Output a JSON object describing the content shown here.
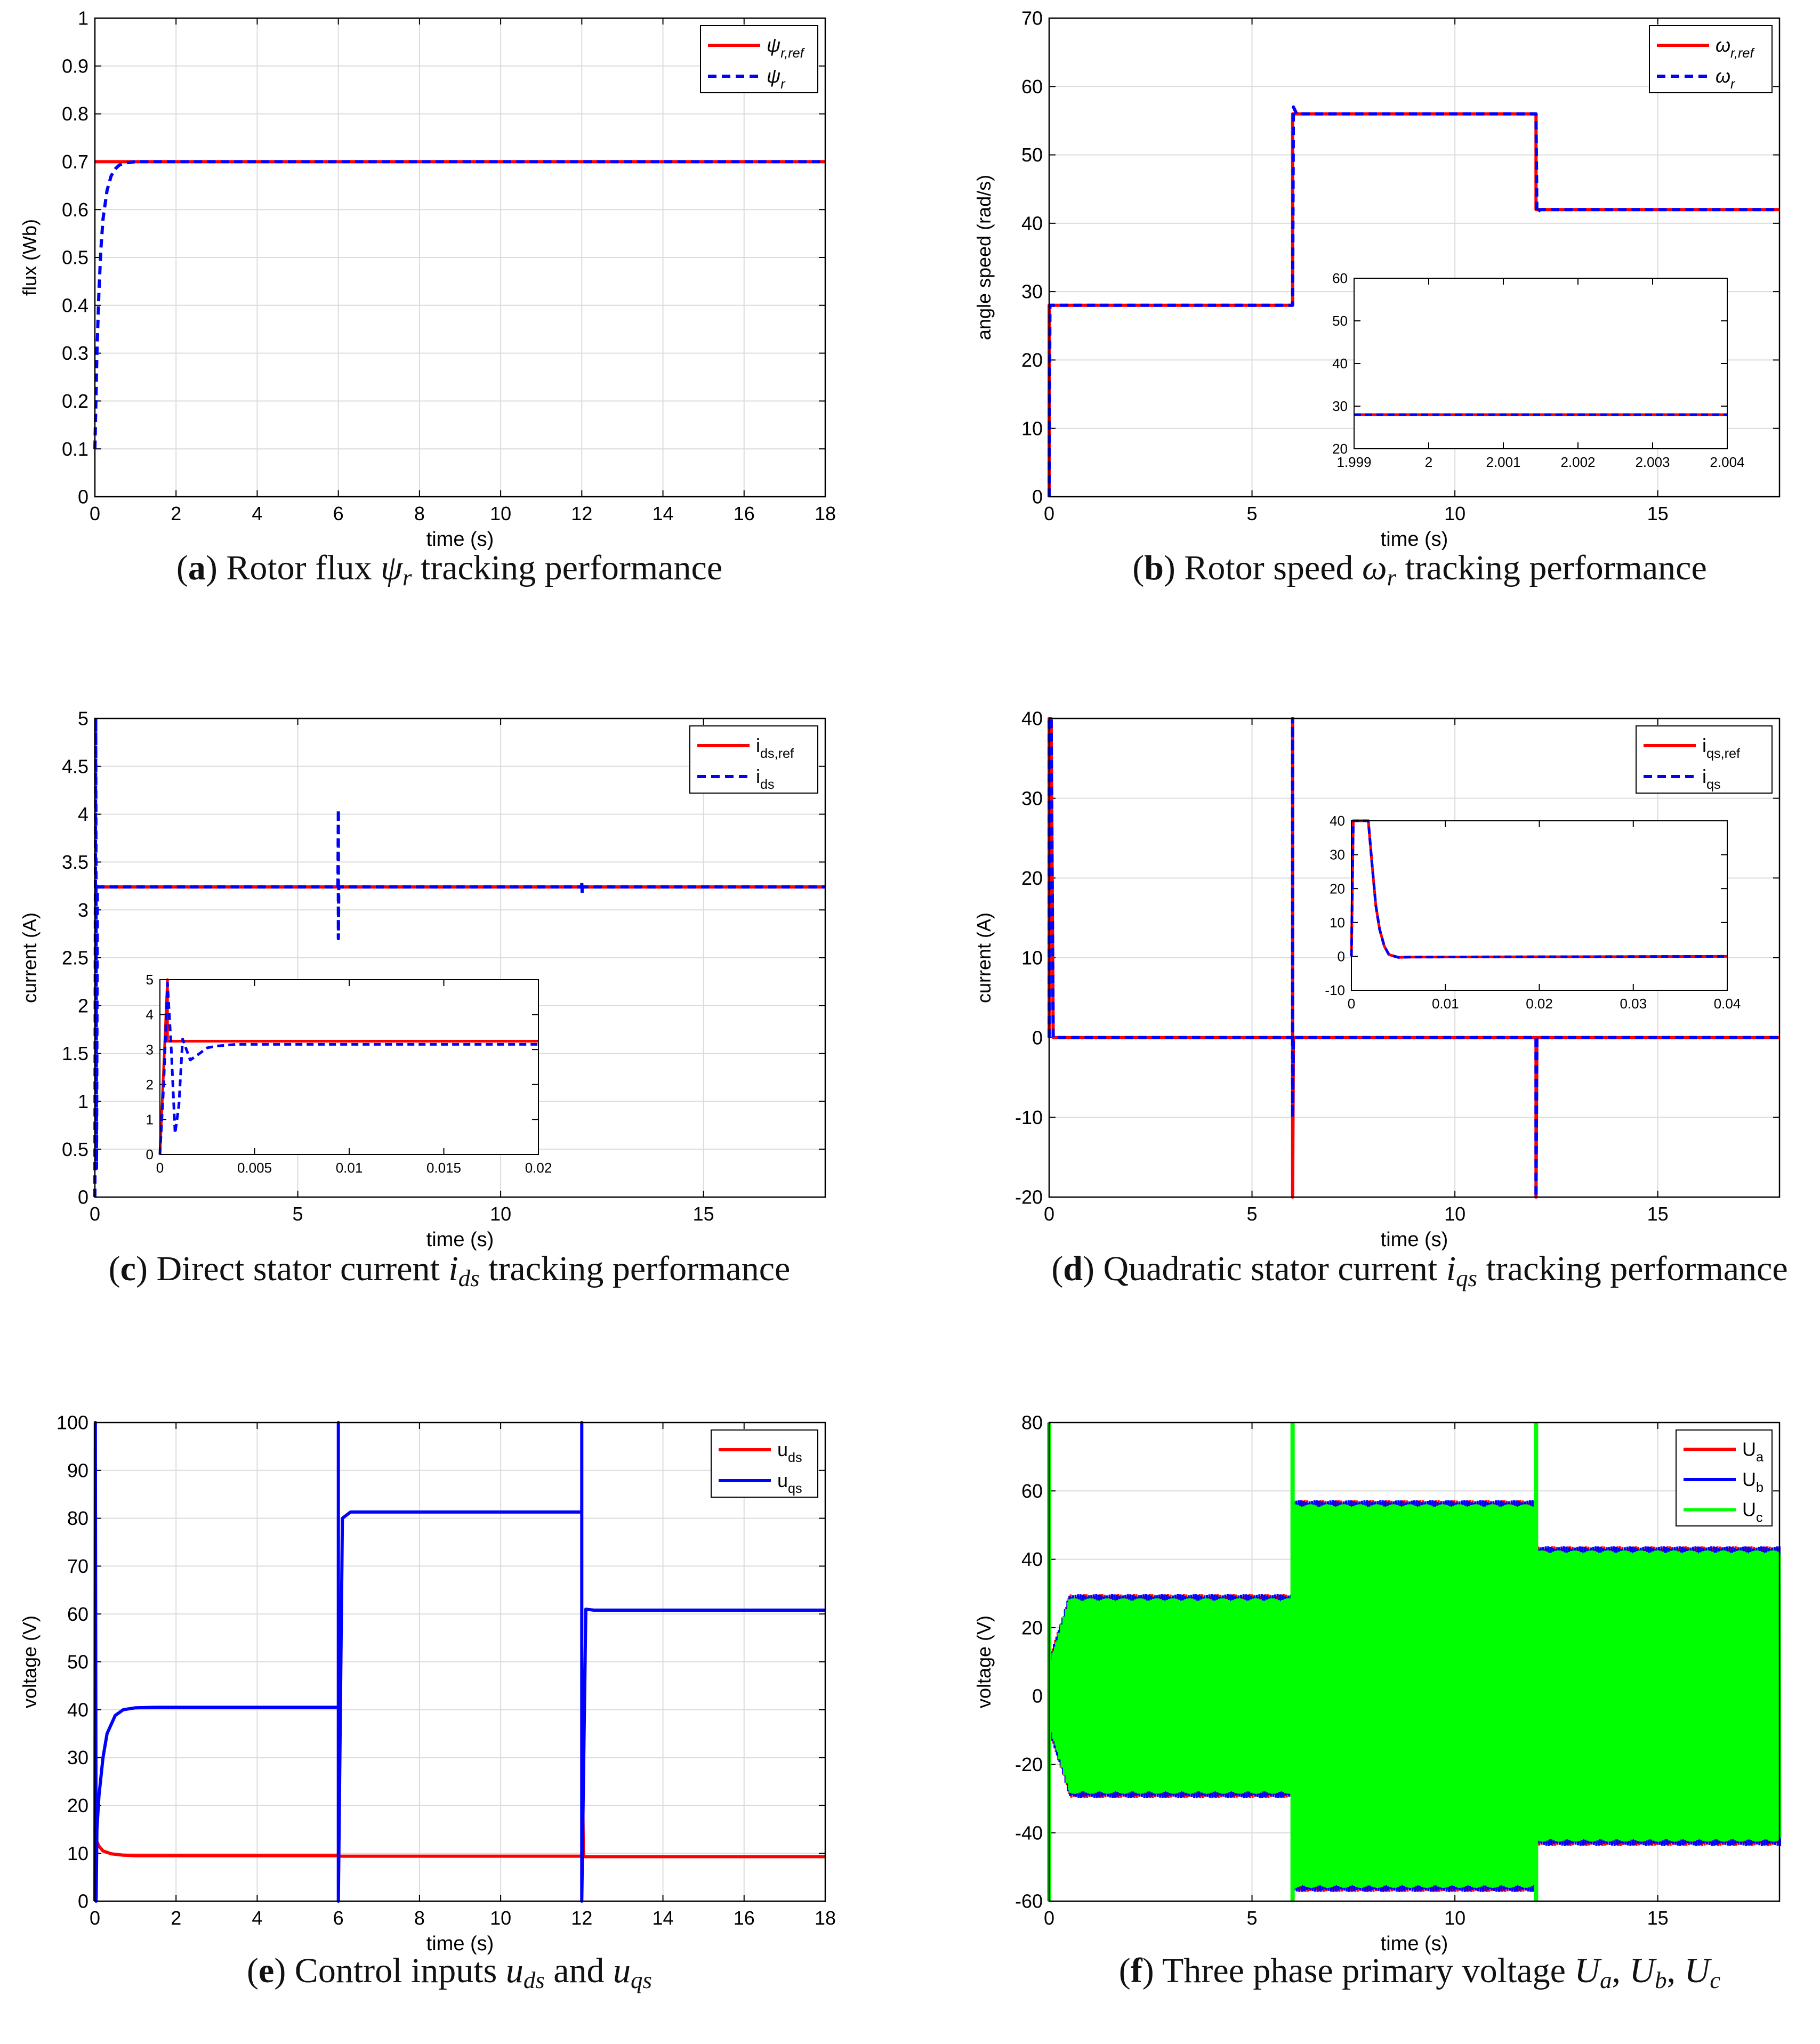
{
  "chart_data": [
    {
      "id": "a",
      "type": "line",
      "caption": {
        "tag": "a",
        "pre": " Rotor flux ",
        "sym": "ψ",
        "sub": "r",
        "post": " tracking performance"
      },
      "xlabel": "time (s)",
      "ylabel": "flux (Wb)",
      "xlim": [
        0,
        18
      ],
      "ylim": [
        0,
        1
      ],
      "xticks": [
        0,
        2,
        4,
        6,
        8,
        10,
        12,
        14,
        16,
        18
      ],
      "yticks": [
        0,
        0.1,
        0.2,
        0.3,
        0.4,
        0.5,
        0.6,
        0.7,
        0.8,
        0.9,
        1
      ],
      "grid": true,
      "legend_position": "top-right",
      "series": [
        {
          "name": "ψ_r,ref",
          "color": "#ff0000",
          "style": "solid",
          "x": [
            0,
            18
          ],
          "y": [
            0.7,
            0.7
          ]
        },
        {
          "name": "ψ_r",
          "color": "#0000ff",
          "style": "dashed",
          "x": [
            0,
            0.05,
            0.1,
            0.15,
            0.2,
            0.3,
            0.4,
            0.5,
            0.6,
            0.8,
            1.0,
            18
          ],
          "y": [
            0.1,
            0.3,
            0.43,
            0.52,
            0.58,
            0.64,
            0.67,
            0.685,
            0.693,
            0.698,
            0.7,
            0.7
          ]
        }
      ]
    },
    {
      "id": "b",
      "type": "line",
      "caption": {
        "tag": "b",
        "pre": " Rotor speed ",
        "sym": "ω",
        "sub": "r",
        "post": " tracking performance"
      },
      "xlabel": "time (s)",
      "ylabel": "angle speed (rad/s)",
      "xlim": [
        0,
        18
      ],
      "ylim": [
        0,
        70
      ],
      "xticks": [
        0,
        5,
        10,
        15
      ],
      "yticks": [
        0,
        10,
        20,
        30,
        40,
        50,
        60,
        70
      ],
      "grid": true,
      "legend_position": "top-right",
      "series": [
        {
          "name": "ω_r,ref",
          "color": "#ff0000",
          "style": "solid",
          "x": [
            0,
            0,
            6,
            6,
            12,
            12,
            18
          ],
          "y": [
            0,
            28,
            28,
            56,
            56,
            42,
            42
          ]
        },
        {
          "name": "ω_r",
          "color": "#0000ff",
          "style": "dashed",
          "x": [
            0,
            0.02,
            0.05,
            6,
            6.02,
            6.1,
            12,
            12.02,
            12.1,
            18
          ],
          "y": [
            0,
            28,
            28,
            28,
            57,
            56,
            56,
            41.5,
            42,
            42
          ]
        }
      ],
      "inset": {
        "xlim": [
          1.999,
          2.004
        ],
        "ylim": [
          20,
          60
        ],
        "xticks": [
          1.999,
          2,
          2.001,
          2.002,
          2.003,
          2.004
        ],
        "xticklabels": [
          "1.999",
          "2",
          "2.001",
          "2.002",
          "2.003",
          "2.004"
        ],
        "yticks": [
          20,
          30,
          40,
          50,
          60
        ],
        "series": [
          {
            "color": "#ff0000",
            "style": "solid",
            "x": [
              1.999,
              2.004
            ],
            "y": [
              28,
              28
            ]
          },
          {
            "color": "#0000ff",
            "style": "dashed",
            "x": [
              1.999,
              2.004
            ],
            "y": [
              28,
              28
            ]
          }
        ]
      }
    },
    {
      "id": "c",
      "type": "line",
      "caption": {
        "tag": "c",
        "pre": " Direct stator current ",
        "sym": "i",
        "sub": "ds",
        "post": " tracking performance"
      },
      "xlabel": "time (s)",
      "ylabel": "current (A)",
      "xlim": [
        0,
        18
      ],
      "ylim": [
        0,
        5
      ],
      "xticks": [
        0,
        5,
        10,
        15
      ],
      "yticks": [
        0,
        0.5,
        1,
        1.5,
        2,
        2.5,
        3,
        3.5,
        4,
        4.5,
        5
      ],
      "grid": true,
      "legend_position": "top-right",
      "series": [
        {
          "name": "i_ds,ref",
          "color": "#ff0000",
          "style": "solid",
          "x": [
            0,
            18
          ],
          "y": [
            3.24,
            3.24
          ]
        },
        {
          "name": "i_ds",
          "color": "#0000ff",
          "style": "dashed",
          "x": [
            0,
            0.02,
            0.04,
            0.06,
            0.1,
            5.99,
            6.0,
            6.0,
            6.01,
            6.02,
            12.0,
            12.0,
            12.01,
            12.02,
            18
          ],
          "y": [
            0,
            5,
            0.3,
            3.24,
            3.24,
            3.24,
            4.05,
            2.7,
            3.24,
            3.24,
            3.24,
            3.3,
            3.17,
            3.24,
            3.24
          ]
        }
      ],
      "inset": {
        "xlim": [
          0,
          0.02
        ],
        "ylim": [
          0,
          5
        ],
        "xticks": [
          0,
          0.005,
          0.01,
          0.015,
          0.02
        ],
        "xticklabels": [
          "0",
          "0.005",
          "0.01",
          "0.015",
          "0.02"
        ],
        "yticks": [
          0,
          1,
          2,
          3,
          4,
          5
        ],
        "series": [
          {
            "color": "#ff0000",
            "style": "solid",
            "x": [
              0,
              0.0004,
              0.0004,
              0.02
            ],
            "y": [
              0,
              5,
              3.24,
              3.24
            ]
          },
          {
            "color": "#0000ff",
            "style": "dashed",
            "x": [
              0,
              0.0002,
              0.0004,
              0.0006,
              0.0008,
              0.001,
              0.0012,
              0.0016,
              0.002,
              0.0025,
              0.003,
              0.004,
              0.006,
              0.02
            ],
            "y": [
              0,
              2,
              4.9,
              3,
              0.6,
              1.4,
              3.3,
              2.7,
              2.85,
              3.05,
              3.1,
              3.15,
              3.15,
              3.15
            ]
          }
        ]
      }
    },
    {
      "id": "d",
      "type": "line",
      "caption": {
        "tag": "d",
        "pre": " Quadratic stator current ",
        "sym": "i",
        "sub": "qs",
        "post": " tracking performance"
      },
      "xlabel": "time (s)",
      "ylabel": "current (A)",
      "xlim": [
        0,
        18
      ],
      "ylim": [
        -20,
        40
      ],
      "xticks": [
        0,
        5,
        10,
        15
      ],
      "yticks": [
        -20,
        -10,
        0,
        10,
        20,
        30,
        40
      ],
      "grid": true,
      "legend_position": "top-right",
      "series": [
        {
          "name": "i_qs,ref",
          "color": "#ff0000",
          "style": "solid",
          "x": [
            0,
            0,
            0.05,
            0.1,
            6.0,
            6.0,
            6.0,
            6.02,
            12.0,
            12.0,
            12.02,
            18
          ],
          "y": [
            0,
            40,
            40,
            0,
            0,
            40,
            -20,
            0,
            0,
            -20,
            0,
            0
          ]
        },
        {
          "name": "i_qs",
          "color": "#0000ff",
          "style": "dashed",
          "x": [
            0,
            0,
            0.05,
            0.1,
            6.0,
            6.0,
            6.0,
            6.02,
            12.0,
            12.0,
            12.02,
            18
          ],
          "y": [
            0,
            40,
            40,
            0,
            0,
            40,
            -10,
            0,
            0,
            -20,
            0,
            0
          ]
        }
      ],
      "inset": {
        "xlim": [
          0,
          0.04
        ],
        "ylim": [
          -10,
          40
        ],
        "xticks": [
          0,
          0.01,
          0.02,
          0.03,
          0.04
        ],
        "xticklabels": [
          "0",
          "0.01",
          "0.02",
          "0.03",
          "0.04"
        ],
        "yticks": [
          -10,
          0,
          10,
          20,
          30,
          40
        ],
        "series": [
          {
            "color": "#ff0000",
            "style": "solid",
            "x": [
              0,
              0.0002,
              0.0004,
              0.0016,
              0.0018,
              0.0022,
              0.0026,
              0.003,
              0.0035,
              0.004,
              0.005,
              0.006,
              0.04
            ],
            "y": [
              0,
              40,
              40,
              40,
              40,
              27,
              15,
              8,
              3,
              0.5,
              -0.3,
              -0.2,
              0
            ]
          },
          {
            "color": "#0000ff",
            "style": "dashed",
            "x": [
              0,
              0.0002,
              0.0004,
              0.0016,
              0.0018,
              0.0022,
              0.0026,
              0.003,
              0.0035,
              0.004,
              0.005,
              0.006,
              0.04
            ],
            "y": [
              0,
              40,
              40,
              40,
              40,
              27,
              15,
              8,
              3,
              0.5,
              -0.3,
              -0.2,
              0
            ]
          }
        ]
      }
    },
    {
      "id": "e",
      "type": "line",
      "caption": {
        "tag": "e",
        "pre": " Control inputs ",
        "sym": "u",
        "sub": "ds",
        "post": " and ",
        "sym2": "u",
        "sub2": "qs"
      },
      "xlabel": "time (s)",
      "ylabel": "voltage (V)",
      "xlim": [
        0,
        18
      ],
      "ylim": [
        0,
        100
      ],
      "xticks": [
        0,
        2,
        4,
        6,
        8,
        10,
        12,
        14,
        16,
        18
      ],
      "yticks": [
        0,
        10,
        20,
        30,
        40,
        50,
        60,
        70,
        80,
        90,
        100
      ],
      "grid": true,
      "legend_position": "top-right",
      "series": [
        {
          "name": "u_ds",
          "color": "#ff0000",
          "style": "solid",
          "x": [
            0,
            0.02,
            0.1,
            0.2,
            0.4,
            0.7,
            1.0,
            6.0,
            6.05,
            12.0,
            12.02,
            12.04,
            18
          ],
          "y": [
            15,
            13,
            11.5,
            10.5,
            9.9,
            9.6,
            9.5,
            9.5,
            9.4,
            9.4,
            24,
            9.3,
            9.3
          ]
        },
        {
          "name": "u_qs",
          "color": "#0000ff",
          "style": "solid",
          "x": [
            0,
            0.01,
            0.03,
            0.05,
            0.1,
            0.2,
            0.3,
            0.5,
            0.7,
            1.0,
            1.5,
            6.0,
            6.0,
            6.0,
            6.1,
            6.3,
            12.0,
            12.0,
            12.0,
            12.1,
            12.3,
            18
          ],
          "y": [
            0,
            100,
            0,
            15,
            22,
            30,
            35,
            38.8,
            40,
            40.4,
            40.5,
            40.5,
            100,
            0,
            80,
            81.3,
            81.3,
            100,
            0,
            61,
            60.8,
            60.8
          ]
        }
      ]
    },
    {
      "id": "f",
      "type": "line",
      "caption": {
        "tag": "f",
        "pre": " Three phase primary voltage ",
        "sym": "U",
        "sub": "a",
        "post": ", ",
        "sym2": "U",
        "sub2": "b",
        "post2": ", ",
        "sym3": "U",
        "sub3": "c"
      },
      "xlabel": "time (s)",
      "ylabel": "voltage (V)",
      "xlim": [
        0,
        18
      ],
      "ylim": [
        -60,
        80
      ],
      "xticks": [
        0,
        5,
        10,
        15
      ],
      "yticks": [
        -60,
        -40,
        -20,
        0,
        20,
        40,
        60,
        80
      ],
      "grid": true,
      "legend_position": "top-right",
      "envelope": [
        {
          "t0": 0.0,
          "t1": 0.5,
          "amp0": 8,
          "amp1": 27
        },
        {
          "t0": 0.5,
          "t1": 6.0,
          "amp0": 27,
          "amp1": 27
        },
        {
          "t0": 6.0,
          "t1": 12.0,
          "amp0": 54.5,
          "amp1": 54.5
        },
        {
          "t0": 12.0,
          "t1": 18.0,
          "amp0": 41,
          "amp1": 41
        }
      ],
      "spikes": [
        {
          "t": 0.0,
          "min": -60,
          "max": 80
        },
        {
          "t": 6.0,
          "min": -60,
          "max": 80
        },
        {
          "t": 12.0,
          "min": -60,
          "max": 80
        }
      ],
      "series": [
        {
          "name": "U_a",
          "color": "#ff0000"
        },
        {
          "name": "U_b",
          "color": "#0000ff"
        },
        {
          "name": "U_c",
          "color": "#00ff00"
        }
      ]
    }
  ]
}
